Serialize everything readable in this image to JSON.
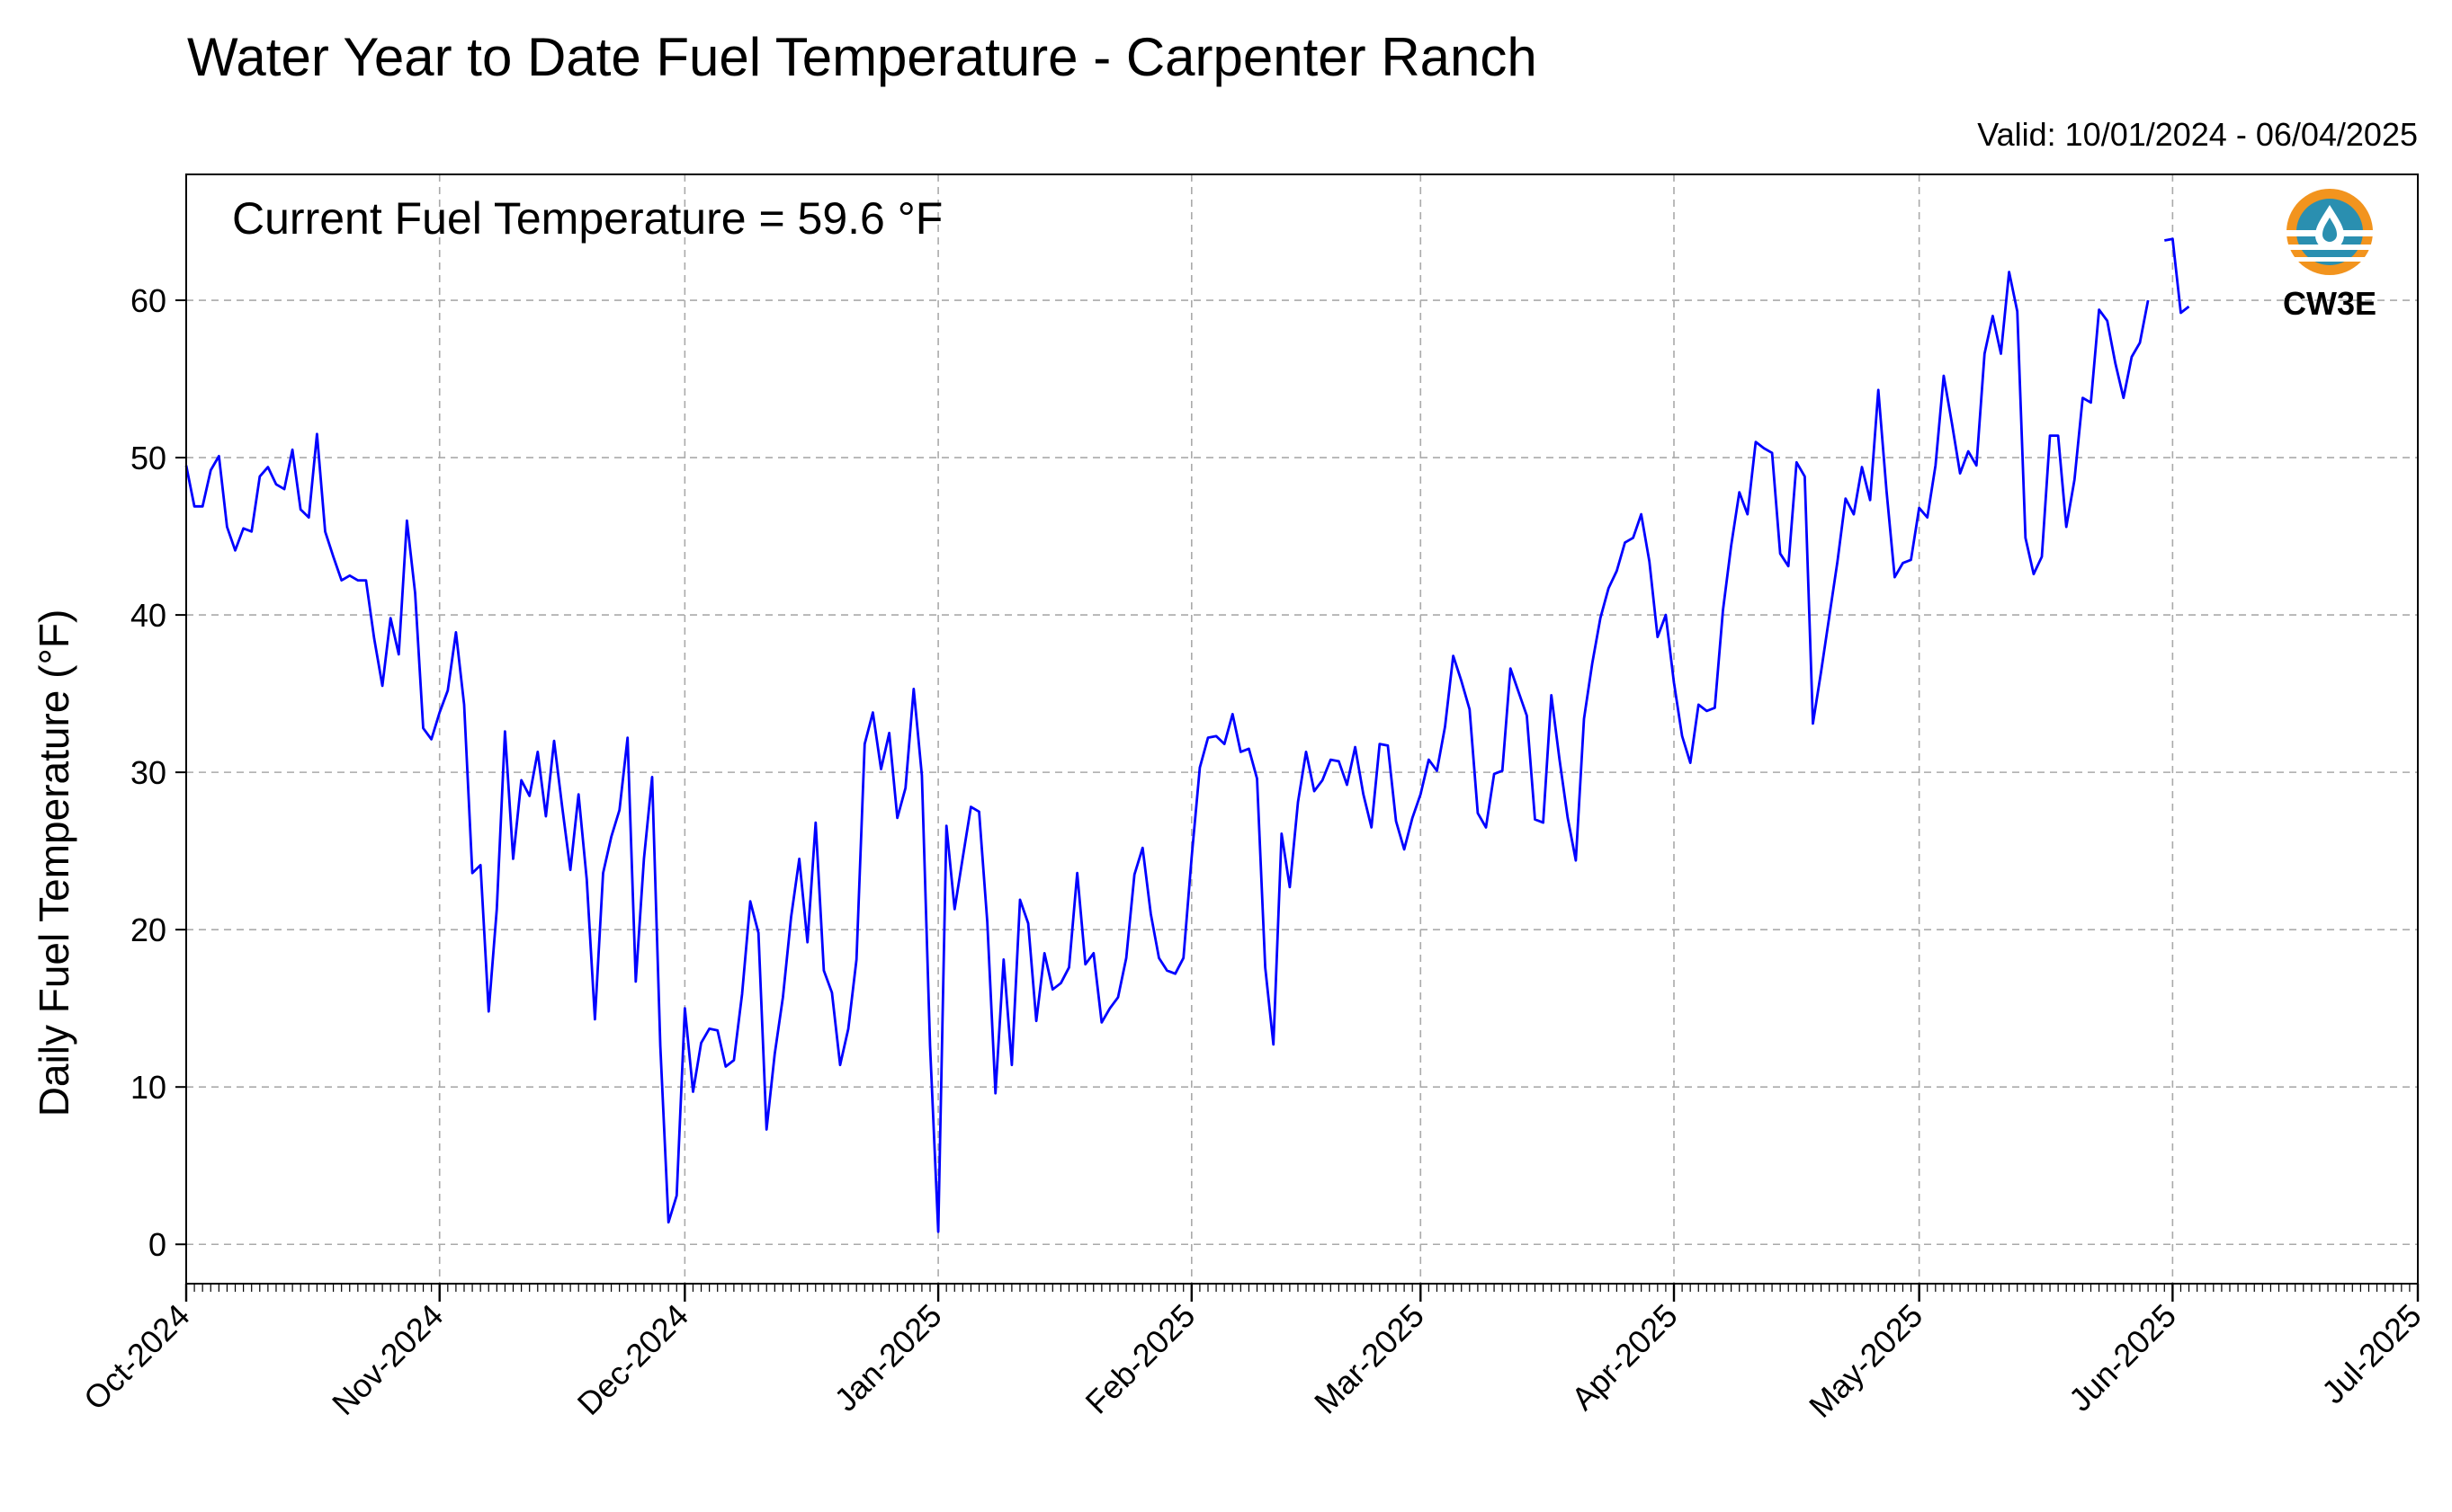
{
  "chart_data": {
    "type": "line",
    "title": "Water Year to Date Fuel Temperature - Carpenter Ranch",
    "subtitle": "Valid: 10/01/2024 - 06/04/2025",
    "annotation": "Current Fuel Temperature = 59.6 °F",
    "xlabel": "",
    "ylabel": "Daily Fuel Temperature (°F)",
    "x_start": "2024-10-01",
    "x_end": "2025-07-01",
    "ylim": [
      -2.5,
      68
    ],
    "yticks": [
      0,
      10,
      20,
      30,
      40,
      50,
      60
    ],
    "xtick_labels": [
      {
        "date": "2024-10-01",
        "label": "Oct-2024"
      },
      {
        "date": "2024-11-01",
        "label": "Nov-2024"
      },
      {
        "date": "2024-12-01",
        "label": "Dec-2024"
      },
      {
        "date": "2025-01-01",
        "label": "Jan-2025"
      },
      {
        "date": "2025-02-01",
        "label": "Feb-2025"
      },
      {
        "date": "2025-03-01",
        "label": "Mar-2025"
      },
      {
        "date": "2025-04-01",
        "label": "Apr-2025"
      },
      {
        "date": "2025-05-01",
        "label": "May-2025"
      },
      {
        "date": "2025-06-01",
        "label": "Jun-2025"
      },
      {
        "date": "2025-07-01",
        "label": "Jul-2025"
      }
    ],
    "grid": true,
    "line_color": "#0000ff",
    "logo": {
      "label": "CW3E",
      "colors": {
        "orange": "#f2941e",
        "teal": "#2a8fb0"
      }
    },
    "series": [
      {
        "x_start": "2024-10-01",
        "values": [
          49.5,
          46.9,
          46.9,
          49.2,
          50.1,
          45.6,
          44.1,
          45.5,
          45.3,
          48.8,
          49.4,
          48.3,
          48.0,
          50.5,
          46.7,
          46.2,
          51.5,
          45.3,
          43.7,
          42.2,
          42.5,
          42.2,
          42.2,
          38.5,
          35.5,
          39.8,
          37.5,
          46.0,
          41.4,
          32.8,
          32.1,
          33.8,
          35.2,
          38.9,
          34.3,
          23.6,
          24.1,
          14.8,
          21.3,
          32.6,
          24.5,
          29.5,
          28.5,
          31.3,
          27.2,
          32.0,
          27.8,
          23.8,
          28.6,
          23.2,
          14.3,
          23.6,
          25.9,
          27.6,
          32.2,
          16.7,
          24.5,
          29.7,
          12.6,
          1.4,
          3.1,
          15.0,
          9.7,
          12.8,
          13.7,
          13.6,
          11.3,
          11.7,
          15.9,
          21.8,
          19.8,
          7.3,
          12.1,
          15.7,
          20.8,
          24.5,
          19.2,
          26.8,
          17.4,
          16.0,
          11.4,
          13.7,
          18.1,
          31.8,
          33.8,
          30.2,
          32.5,
          27.1,
          29.0,
          35.3,
          29.8,
          12.6,
          0.8,
          26.6,
          21.3,
          24.6,
          27.8,
          27.5,
          20.5,
          9.6,
          18.1,
          11.4,
          21.9,
          20.4,
          14.2,
          18.5,
          16.2,
          16.6,
          17.6,
          23.6,
          17.8,
          18.5,
          14.1,
          15.0,
          15.7,
          18.2,
          23.5,
          25.2,
          21.0,
          18.2,
          17.4,
          17.2,
          18.2,
          24.6,
          30.3,
          32.2,
          32.3,
          31.8,
          33.7,
          31.3,
          31.5,
          29.6,
          17.6,
          12.7,
          26.1,
          22.7,
          28.1,
          31.3,
          28.8,
          29.5,
          30.8,
          30.7,
          29.2,
          31.6,
          28.6,
          26.5,
          31.8,
          31.7,
          26.9,
          25.1,
          27.1,
          28.6,
          30.8,
          30.1,
          32.9,
          37.4,
          35.8,
          34.0,
          27.4,
          26.5,
          29.9,
          30.1,
          36.6,
          35.1,
          33.6,
          27.0,
          26.8,
          34.9,
          30.8,
          27.1,
          24.4,
          33.4,
          36.9,
          39.8,
          41.7,
          42.8,
          44.6,
          44.9,
          46.4,
          43.4,
          38.6,
          40.0,
          35.7,
          32.3,
          30.6,
          34.3,
          33.9,
          34.1,
          40.3,
          44.4,
          47.8,
          46.4,
          51.0,
          50.6,
          50.3,
          43.9,
          43.1,
          49.7,
          48.8,
          33.1,
          36.4,
          39.9,
          43.4,
          47.4,
          46.4,
          49.4,
          47.3,
          54.3,
          47.9,
          42.4,
          43.3,
          43.5,
          46.8,
          46.2,
          49.5,
          55.2,
          52.2,
          49.0,
          50.4,
          49.5,
          56.6,
          59.0,
          56.6,
          61.8,
          59.3,
          44.9,
          42.6,
          43.7,
          51.4,
          51.4,
          45.6,
          48.6,
          53.8,
          53.5,
          59.4,
          58.7,
          56.0,
          53.8,
          56.4,
          57.3,
          60.0
        ]
      },
      {
        "x_start": "2025-05-31",
        "values": [
          63.8,
          63.9,
          59.2,
          59.6
        ]
      }
    ]
  }
}
